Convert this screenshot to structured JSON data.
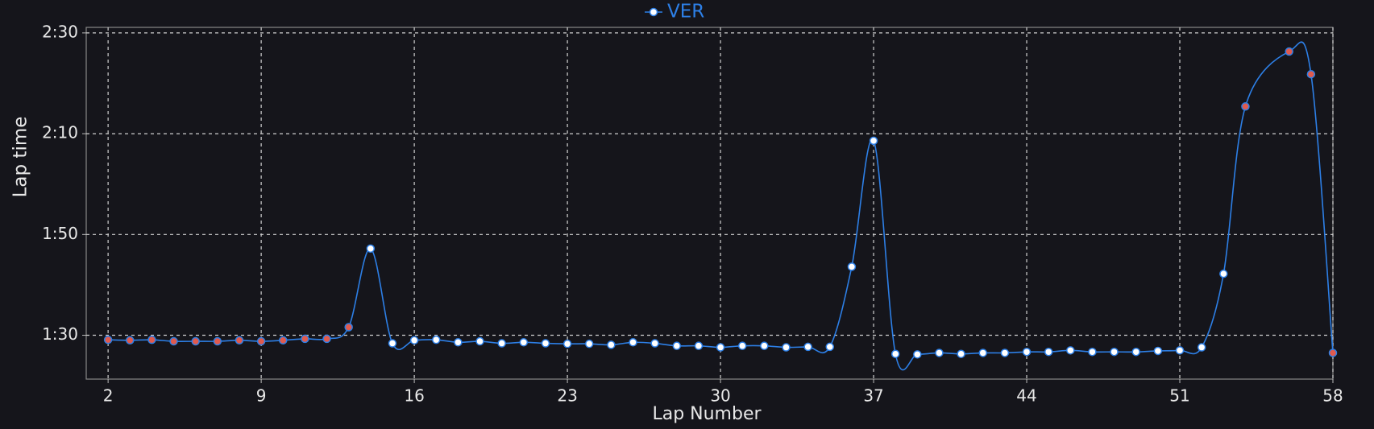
{
  "chart_data": {
    "type": "line",
    "x_label": "Lap Number",
    "y_label": "Lap time",
    "x": [
      2,
      3,
      4,
      5,
      6,
      7,
      8,
      9,
      10,
      11,
      12,
      13,
      14,
      15,
      16,
      17,
      18,
      19,
      20,
      21,
      22,
      23,
      24,
      25,
      26,
      27,
      28,
      29,
      30,
      31,
      32,
      33,
      34,
      35,
      36,
      37,
      38,
      39,
      40,
      41,
      42,
      43,
      44,
      45,
      46,
      47,
      48,
      49,
      50,
      51,
      52,
      53,
      54,
      56,
      57,
      58
    ],
    "series": [
      {
        "name": "VER",
        "color": "#2d7fe6",
        "values": [
          89.1,
          89.0,
          89.1,
          88.8,
          88.8,
          88.8,
          89.0,
          88.8,
          89.0,
          89.3,
          89.3,
          91.6,
          107.2,
          88.4,
          89.0,
          89.1,
          88.6,
          88.8,
          88.4,
          88.6,
          88.4,
          88.3,
          88.3,
          88.1,
          88.6,
          88.4,
          87.9,
          87.9,
          87.6,
          87.9,
          87.9,
          87.6,
          87.7,
          87.7,
          103.6,
          128.6,
          86.3,
          86.2,
          86.5,
          86.3,
          86.5,
          86.5,
          86.7,
          86.7,
          87.0,
          86.7,
          86.7,
          86.7,
          86.9,
          87.0,
          87.6,
          102.2,
          135.4,
          146.3,
          141.8,
          86.5
        ],
        "marker_colors": [
          "#e05a4e",
          "#e05a4e",
          "#e05a4e",
          "#e05a4e",
          "#e05a4e",
          "#e05a4e",
          "#e05a4e",
          "#e05a4e",
          "#e05a4e",
          "#e05a4e",
          "#e05a4e",
          "#e05a4e",
          "#ffffff",
          "#ffffff",
          "#ffffff",
          "#ffffff",
          "#ffffff",
          "#ffffff",
          "#ffffff",
          "#ffffff",
          "#ffffff",
          "#ffffff",
          "#ffffff",
          "#ffffff",
          "#ffffff",
          "#ffffff",
          "#ffffff",
          "#ffffff",
          "#ffffff",
          "#ffffff",
          "#ffffff",
          "#ffffff",
          "#ffffff",
          "#ffffff",
          "#ffffff",
          "#ffffff",
          "#ffffff",
          "#ffffff",
          "#ffffff",
          "#ffffff",
          "#ffffff",
          "#ffffff",
          "#ffffff",
          "#ffffff",
          "#ffffff",
          "#ffffff",
          "#ffffff",
          "#ffffff",
          "#ffffff",
          "#ffffff",
          "#ffffff",
          "#ffffff",
          "#e05a4e",
          "#e05a4e",
          "#e05a4e",
          "#e05a4e"
        ]
      }
    ],
    "xlim": [
      1,
      58
    ],
    "xticks": [
      2,
      9,
      16,
      23,
      30,
      37,
      44,
      51,
      58
    ],
    "ylim": [
      81.3,
      151.1
    ],
    "yticks": [
      {
        "value": 90,
        "label": "1:30"
      },
      {
        "value": 110,
        "label": "1:50"
      },
      {
        "value": 130,
        "label": "2:10"
      },
      {
        "value": 150,
        "label": "2:30"
      }
    ],
    "grid": true,
    "legend": "top"
  }
}
